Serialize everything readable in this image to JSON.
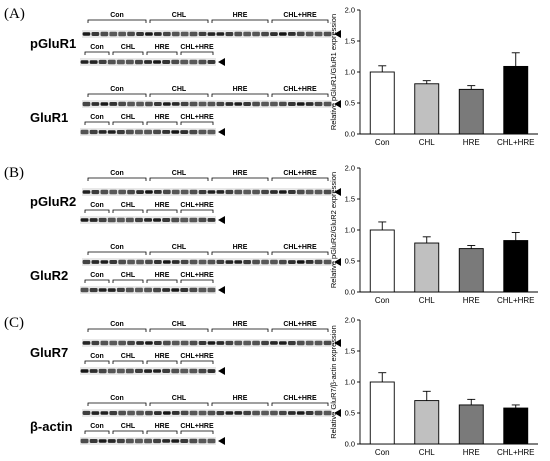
{
  "figure": {
    "panels": [
      {
        "letter": "(A)",
        "blots": [
          {
            "protein": "pGluR1",
            "row1_groups": [
              "Con",
              "CHL",
              "HRE",
              "CHL+HRE"
            ],
            "row2_groups": [
              "Con",
              "CHL",
              "HRE",
              "CHL+HRE"
            ]
          },
          {
            "protein": "GluR1",
            "row1_groups": [
              "Con",
              "CHL",
              "HRE",
              "CHL+HRE"
            ],
            "row2_groups": [
              "Con",
              "CHL",
              "HRE",
              "CHL+HRE"
            ]
          }
        ]
      },
      {
        "letter": "(B)",
        "blots": [
          {
            "protein": "pGluR2",
            "row1_groups": [
              "Con",
              "CHL",
              "HRE",
              "CHL+HRE"
            ],
            "row2_groups": [
              "Con",
              "CHL",
              "HRE",
              "CHL+HRE"
            ]
          },
          {
            "protein": "GluR2",
            "row1_groups": [
              "Con",
              "CHL",
              "HRE",
              "CHL+HRE"
            ],
            "row2_groups": [
              "Con",
              "CHL",
              "HRE",
              "CHL+HRE"
            ]
          }
        ]
      },
      {
        "letter": "(C)",
        "blots": [
          {
            "protein": "GluR7",
            "row1_groups": [
              "Con",
              "CHL",
              "HRE",
              "CHL+HRE"
            ],
            "row2_groups": [
              "Con",
              "CHL",
              "HRE",
              "CHL+HRE"
            ]
          },
          {
            "protein": "β-actin",
            "row1_groups": [
              "Con",
              "CHL",
              "HRE",
              "CHL+HRE"
            ],
            "row2_groups": [
              "Con",
              "CHL",
              "HRE",
              "CHL+HRE"
            ]
          }
        ]
      }
    ]
  },
  "chart_data": [
    {
      "type": "bar",
      "categories": [
        "Con",
        "CHL",
        "HRE",
        "CHL+HRE"
      ],
      "values": [
        1.0,
        0.81,
        0.72,
        1.09
      ],
      "errors": [
        0.1,
        0.05,
        0.06,
        0.22
      ],
      "ylabel": "Relative pGluR1/GluR1 expression",
      "ylim": [
        0,
        2.0
      ],
      "yticks": [
        "0.0",
        "0.5",
        "1.0",
        "1.5",
        "2.0"
      ],
      "bar_colors": [
        "#ffffff",
        "#c0c0c0",
        "#7a7a7a",
        "#000000"
      ]
    },
    {
      "type": "bar",
      "categories": [
        "Con",
        "CHL",
        "HRE",
        "CHL+HRE"
      ],
      "values": [
        1.0,
        0.79,
        0.7,
        0.83
      ],
      "errors": [
        0.13,
        0.1,
        0.05,
        0.13
      ],
      "ylabel": "Relative pGluR2/GluR2 expression",
      "ylim": [
        0,
        2.0
      ],
      "yticks": [
        "0.0",
        "0.5",
        "1.0",
        "1.5",
        "2.0"
      ],
      "bar_colors": [
        "#ffffff",
        "#c0c0c0",
        "#7a7a7a",
        "#000000"
      ]
    },
    {
      "type": "bar",
      "categories": [
        "Con",
        "CHL",
        "HRE",
        "CHL+HRE"
      ],
      "values": [
        1.0,
        0.7,
        0.63,
        0.58
      ],
      "errors": [
        0.15,
        0.15,
        0.09,
        0.05
      ],
      "ylabel": "Relative GluR7/β-actin expression",
      "ylim": [
        0,
        2.0
      ],
      "yticks": [
        "0.0",
        "0.5",
        "1.0",
        "1.5",
        "2.0"
      ],
      "bar_colors": [
        "#ffffff",
        "#c0c0c0",
        "#7a7a7a",
        "#000000"
      ]
    }
  ]
}
